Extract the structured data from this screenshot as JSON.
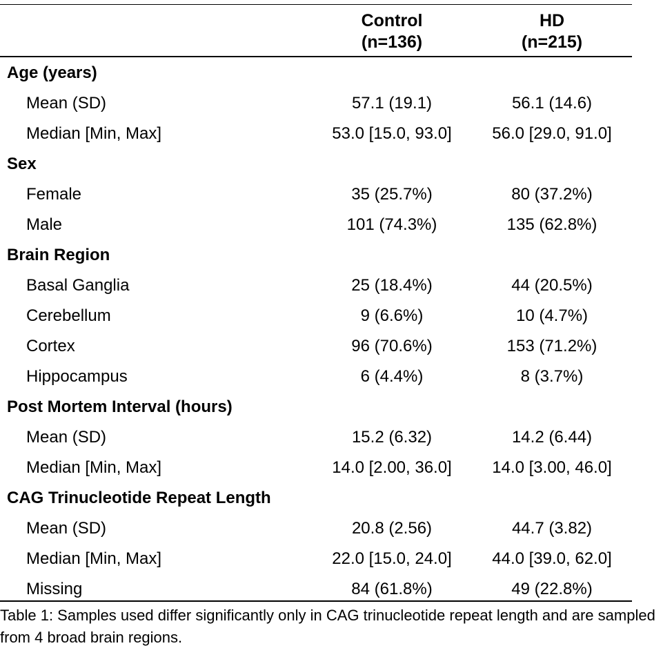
{
  "table": {
    "columns": [
      {
        "name": "Control",
        "n": "(n=136)"
      },
      {
        "name": "HD",
        "n": "(n=215)"
      }
    ],
    "groups": [
      {
        "label": "Age (years)",
        "rows": [
          {
            "label": "Mean (SD)",
            "control": "57.1 (19.1)",
            "hd": "56.1 (14.6)"
          },
          {
            "label": "Median [Min, Max]",
            "control": "53.0 [15.0, 93.0]",
            "hd": "56.0 [29.0, 91.0]"
          }
        ]
      },
      {
        "label": "Sex",
        "rows": [
          {
            "label": "Female",
            "control": "35 (25.7%)",
            "hd": "80 (37.2%)"
          },
          {
            "label": "Male",
            "control": "101 (74.3%)",
            "hd": "135 (62.8%)"
          }
        ]
      },
      {
        "label": "Brain Region",
        "rows": [
          {
            "label": "Basal Ganglia",
            "control": "25 (18.4%)",
            "hd": "44 (20.5%)"
          },
          {
            "label": "Cerebellum",
            "control": "9 (6.6%)",
            "hd": "10 (4.7%)"
          },
          {
            "label": "Cortex",
            "control": "96 (70.6%)",
            "hd": "153 (71.2%)"
          },
          {
            "label": "Hippocampus",
            "control": "6 (4.4%)",
            "hd": "8 (3.7%)"
          }
        ]
      },
      {
        "label": "Post Mortem Interval (hours)",
        "rows": [
          {
            "label": "Mean (SD)",
            "control": "15.2 (6.32)",
            "hd": "14.2 (6.44)"
          },
          {
            "label": "Median [Min, Max]",
            "control": "14.0 [2.00, 36.0]",
            "hd": "14.0 [3.00, 46.0]"
          }
        ]
      },
      {
        "label": "CAG Trinucleotide Repeat Length",
        "rows": [
          {
            "label": "Mean (SD)",
            "control": "20.8 (2.56)",
            "hd": "44.7 (3.82)"
          },
          {
            "label": "Median [Min, Max]",
            "control": "22.0 [15.0, 24.0]",
            "hd": "44.0 [39.0, 62.0]"
          },
          {
            "label": "Missing",
            "control": "84 (61.8%)",
            "hd": "49 (22.8%)"
          }
        ]
      }
    ]
  },
  "caption": "Table 1: Samples used differ significantly only in CAG trinucleotide repeat length and are sampled from 4 broad brain regions."
}
